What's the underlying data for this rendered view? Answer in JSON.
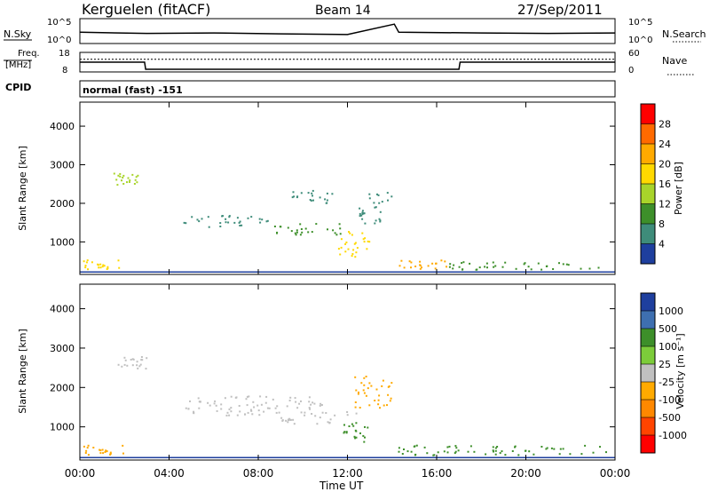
{
  "header": {
    "station": "Kerguelen (fitACF)",
    "beam": "Beam 14",
    "date": "27/Sep/2011"
  },
  "noise_panel": {
    "left_label": "N.Sky",
    "right_label": "N.Search",
    "ticks": [
      "10^5",
      "10^0"
    ]
  },
  "freq_panel": {
    "left_label_line1": "Freq.",
    "left_label_line2": "[MHz]",
    "right_label": "Nave",
    "left_ticks": [
      "18",
      "8"
    ],
    "right_ticks": [
      "60",
      "0"
    ]
  },
  "cpid_panel": {
    "label": "CPID",
    "mode": "normal (fast) -151"
  },
  "power_panel": {
    "ylabel": "Slant Range [km]",
    "yticks": [
      "4000",
      "3000",
      "2000",
      "1000"
    ],
    "colorbar_label": "Power [dB]",
    "colorbar_ticks": [
      "28",
      "24",
      "20",
      "16",
      "12",
      "8",
      "4"
    ],
    "colorbar_colors": [
      "#ff0000",
      "#ff6a00",
      "#ffaa00",
      "#ffd900",
      "#a8d42a",
      "#3d8f2a",
      "#3e8c7a",
      "#1e3f9e",
      "#0000ff"
    ]
  },
  "velocity_panel": {
    "ylabel": "Slant Range [km]",
    "yticks": [
      "4000",
      "3000",
      "2000",
      "1000"
    ],
    "colorbar_label": "Velocity [m s⁻¹]",
    "colorbar_ticks": [
      "1000",
      "500",
      "100",
      "25",
      "-25",
      "-100",
      "-500",
      "-1000"
    ],
    "colorbar_colors": [
      "#1e3f9e",
      "#3e6fb0",
      "#3d8f2a",
      "#7ccc3a",
      "#c0c0c0",
      "#ffaa00",
      "#ff8800",
      "#ff4400",
      "#ff0000"
    ]
  },
  "xaxis": {
    "ticks": [
      "00:00",
      "04:00",
      "08:00",
      "12:00",
      "16:00",
      "20:00",
      "00:00"
    ],
    "label": "Time UT"
  },
  "chart_data": [
    {
      "type": "line",
      "title": "N.Sky / N.Search noise",
      "x_unit": "hours UT",
      "x": [
        0,
        3,
        6,
        9,
        12,
        14.1,
        14.3,
        18,
        21,
        24
      ],
      "series": [
        {
          "name": "N.Sky",
          "values": [
            0.45,
            0.4,
            0.42,
            0.38,
            0.35,
            0.8,
            0.45,
            0.42,
            0.4,
            0.42
          ]
        }
      ]
    },
    {
      "type": "line",
      "title": "Frequency / Nave",
      "x_unit": "hours UT",
      "series": [
        {
          "name": "Freq. [MHz]",
          "x": [
            0,
            2.9,
            2.95,
            17.0,
            17.05,
            24
          ],
          "values": [
            13,
            13,
            9,
            9,
            13,
            13
          ]
        },
        {
          "name": "Nave",
          "x": [
            0,
            24
          ],
          "values": [
            40,
            40
          ]
        }
      ],
      "ylim_left": [
        8,
        18
      ],
      "ylim_right": [
        0,
        60
      ]
    },
    {
      "type": "heatmap",
      "title": "Power [dB]",
      "x_unit": "hours UT",
      "y_unit": "km",
      "xlim": [
        0,
        24
      ],
      "ylim": [
        180,
        4600
      ],
      "regions": [
        {
          "t0": 0.0,
          "t1": 1.8,
          "r0": 300,
          "r1": 550,
          "value": 18
        },
        {
          "t0": 14.2,
          "t1": 16.5,
          "r0": 300,
          "r1": 550,
          "value": 20
        },
        {
          "t0": 16.5,
          "t1": 24.0,
          "r0": 300,
          "r1": 500,
          "value": 10
        },
        {
          "t0": 4.5,
          "t1": 8.5,
          "r0": 1400,
          "r1": 1700,
          "value": 6
        },
        {
          "t0": 8.5,
          "t1": 12.0,
          "r0": 1200,
          "r1": 1500,
          "value": 8
        },
        {
          "t0": 11.5,
          "t1": 13.0,
          "r0": 600,
          "r1": 1300,
          "value": 16
        },
        {
          "t0": 12.5,
          "t1": 14.0,
          "r0": 1500,
          "r1": 2300,
          "value": 5
        },
        {
          "t0": 9.5,
          "t1": 11.5,
          "r0": 2000,
          "r1": 2400,
          "value": 4
        },
        {
          "t0": 1.5,
          "t1": 2.6,
          "r0": 2500,
          "r1": 2800,
          "value": 14
        }
      ]
    },
    {
      "type": "heatmap",
      "title": "Velocity [m s⁻¹]",
      "x_unit": "hours UT",
      "y_unit": "km",
      "xlim": [
        0,
        24
      ],
      "ylim": [
        180,
        4600
      ],
      "regions": [
        {
          "t0": 0.0,
          "t1": 2.0,
          "r0": 300,
          "r1": 550,
          "value": -100
        },
        {
          "t0": 14.2,
          "t1": 24.0,
          "r0": 300,
          "r1": 550,
          "value": 100
        },
        {
          "t0": 4.5,
          "t1": 11.0,
          "r0": 1300,
          "r1": 1800,
          "value": 0
        },
        {
          "t0": 9.0,
          "t1": 12.5,
          "r0": 1100,
          "r1": 1400,
          "value": 0
        },
        {
          "t0": 11.8,
          "t1": 13.0,
          "r0": 600,
          "r1": 1200,
          "value": 150
        },
        {
          "t0": 12.3,
          "t1": 14.0,
          "r0": 1500,
          "r1": 2300,
          "value": -50
        },
        {
          "t0": 1.5,
          "t1": 3.0,
          "r0": 2500,
          "r1": 2800,
          "value": 0
        }
      ]
    }
  ]
}
